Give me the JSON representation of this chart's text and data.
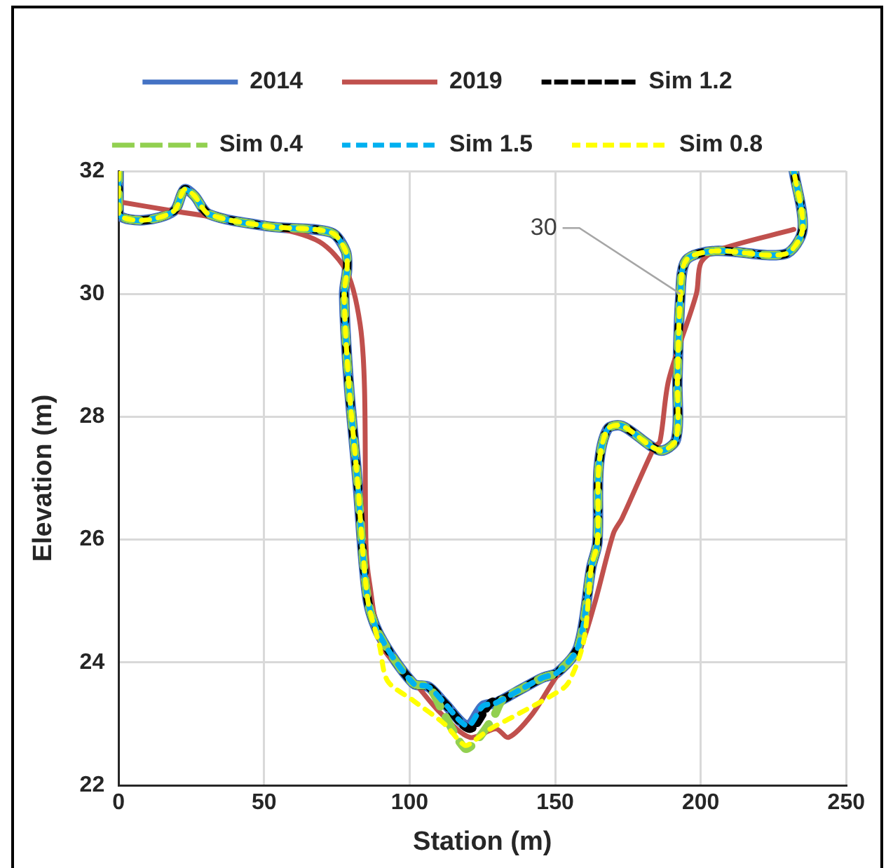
{
  "chart_data": {
    "type": "line",
    "xlabel": "Station (m)",
    "ylabel": "Elevation (m)",
    "xlim": [
      0,
      250
    ],
    "xticks": [
      0,
      50,
      100,
      150,
      200,
      250
    ],
    "ylim": [
      22,
      32
    ],
    "yticks": [
      22,
      24,
      26,
      28,
      30,
      32
    ],
    "grid": true,
    "legend": "top",
    "marker": "none",
    "annotations": [
      {
        "text": "30",
        "x": 193,
        "y": 30
      }
    ],
    "series": [
      {
        "name": "2014",
        "color": "#4472c4",
        "line_style": "solid",
        "x": [
          0,
          0,
          8.6,
          19,
          22.6,
          26,
          31,
          51.5,
          73,
          78,
          78.5,
          77.5,
          79,
          82,
          85.5,
          89.7,
          101.2,
          106.6,
          111.9,
          119.9,
          125.2,
          129.6,
          138.5,
          145.6,
          150.9,
          158,
          162.4,
          164.5,
          165,
          168,
          173,
          186,
          191.5,
          192,
          193,
          195,
          205,
          229,
          235,
          232
        ],
        "values": [
          32,
          31.3,
          31.2,
          31.35,
          31.7,
          31.6,
          31.3,
          31.1,
          31.0,
          30.7,
          30.4,
          30.0,
          28.6,
          27.0,
          25.05,
          24.44,
          23.66,
          23.6,
          23.34,
          22.97,
          23.29,
          23.34,
          23.57,
          23.75,
          23.84,
          24.26,
          25.55,
          25.95,
          27.2,
          27.8,
          27.85,
          27.45,
          27.63,
          28.6,
          29.95,
          30.55,
          30.7,
          30.65,
          31.05,
          32
        ]
      },
      {
        "name": "2019",
        "color": "#c0504d",
        "line_style": "solid",
        "x": [
          0,
          19,
          51.5,
          69,
          78.5,
          83,
          84.5,
          85,
          86.2,
          90.6,
          101.2,
          110.1,
          120.7,
          129.6,
          134,
          142,
          150.9,
          158,
          163.5,
          170,
          173,
          184,
          186,
          189,
          198.5,
          200,
          205,
          232
        ],
        "values": [
          31.5,
          31.35,
          31.1,
          30.85,
          30.35,
          29.5,
          28.45,
          25.9,
          25.3,
          24.26,
          23.7,
          23.2,
          22.78,
          22.92,
          22.78,
          23.15,
          23.8,
          24.17,
          24.95,
          26.1,
          26.35,
          27.5,
          27.6,
          28.6,
          30.0,
          30.5,
          30.7,
          31.05
        ]
      },
      {
        "name": "Sim 1.2",
        "color": "#000000",
        "line_style": "dashed",
        "x": [
          0,
          0,
          8.6,
          19,
          22.6,
          26,
          31,
          51.5,
          73,
          78,
          78.5,
          77.5,
          79,
          82,
          85.5,
          89.7,
          101.2,
          106.6,
          111.9,
          120.7,
          127.8,
          132,
          138.5,
          145.6,
          150.9,
          158,
          162.4,
          164.5,
          165,
          168,
          173,
          186,
          191.5,
          192,
          193,
          195,
          205,
          229,
          235,
          232
        ],
        "values": [
          32,
          31.3,
          31.2,
          31.35,
          31.7,
          31.6,
          31.3,
          31.1,
          31.0,
          30.7,
          30.4,
          30.0,
          28.6,
          27.0,
          25.05,
          24.44,
          23.66,
          23.6,
          23.34,
          22.92,
          23.34,
          23.4,
          23.57,
          23.75,
          23.84,
          24.26,
          25.55,
          25.95,
          27.2,
          27.8,
          27.85,
          27.45,
          27.63,
          28.6,
          29.95,
          30.55,
          30.7,
          30.65,
          31.05,
          32
        ]
      },
      {
        "name": "Sim 0.4",
        "color": "#92d050",
        "line_style": "dashed",
        "x": [
          0,
          0,
          8.6,
          19,
          22.6,
          26,
          31,
          51.5,
          73,
          78,
          78.5,
          77.5,
          79,
          82,
          85.5,
          89.7,
          101.2,
          106.6,
          111.9,
          119,
          122.5,
          128.7,
          132,
          138.5,
          145.6,
          150.9,
          158,
          162.4,
          164.5,
          165,
          168,
          173,
          186,
          191.5,
          192,
          193,
          195,
          205,
          229,
          235,
          232
        ],
        "values": [
          32,
          31.3,
          31.2,
          31.35,
          31.7,
          31.6,
          31.3,
          31.1,
          31.0,
          30.7,
          30.4,
          30.0,
          28.6,
          27.0,
          25.05,
          24.44,
          23.66,
          23.6,
          23.15,
          22.6,
          22.7,
          23.1,
          23.4,
          23.57,
          23.75,
          23.84,
          24.26,
          25.55,
          25.95,
          27.2,
          27.8,
          27.85,
          27.45,
          27.63,
          28.6,
          29.95,
          30.55,
          30.7,
          30.65,
          31.05,
          32
        ]
      },
      {
        "name": "Sim 1.5",
        "color": "#00b0f0",
        "line_style": "dashed",
        "x": [
          0,
          0,
          8.6,
          19,
          22.6,
          26,
          31,
          51.5,
          73,
          78,
          78.5,
          77.5,
          79,
          82,
          85.5,
          89.7,
          101.2,
          106.6,
          111.9,
          119.9,
          125.2,
          129.6,
          138.5,
          145.6,
          150.9,
          158,
          162.4,
          164.5,
          165,
          168,
          173,
          186,
          191.5,
          192,
          193,
          195,
          205,
          229,
          235,
          232
        ],
        "values": [
          32,
          31.3,
          31.2,
          31.35,
          31.7,
          31.6,
          31.3,
          31.1,
          31.0,
          30.7,
          30.4,
          30.0,
          28.6,
          27.0,
          25.05,
          24.44,
          23.66,
          23.6,
          23.34,
          22.97,
          23.29,
          23.34,
          23.57,
          23.75,
          23.84,
          24.26,
          25.55,
          25.95,
          27.2,
          27.8,
          27.85,
          27.45,
          27.63,
          28.6,
          29.95,
          30.55,
          30.7,
          30.65,
          31.05,
          32
        ]
      },
      {
        "name": "Sim 0.8",
        "color": "#ffff00",
        "line_style": "dashed",
        "x": [
          0,
          0,
          8.6,
          19,
          22.6,
          26,
          31,
          51.5,
          73,
          78,
          78.5,
          77.5,
          79,
          82,
          85.5,
          89.7,
          92.4,
          101.2,
          111.9,
          119,
          122.5,
          127.8,
          134.9,
          149.1,
          154.4,
          159.8,
          162.4,
          164.5,
          165,
          168,
          173,
          186,
          191.5,
          192,
          193,
          195,
          205,
          229,
          235,
          232
        ],
        "values": [
          32,
          31.3,
          31.2,
          31.35,
          31.7,
          31.6,
          31.3,
          31.1,
          31.0,
          30.7,
          30.4,
          30.0,
          28.6,
          27.0,
          25.05,
          24.26,
          23.7,
          23.38,
          23.0,
          22.65,
          22.74,
          22.92,
          23.1,
          23.47,
          23.66,
          24.35,
          25.55,
          25.95,
          27.2,
          27.8,
          27.85,
          27.45,
          27.63,
          28.6,
          29.95,
          30.55,
          30.7,
          30.65,
          31.05,
          32
        ]
      }
    ]
  }
}
